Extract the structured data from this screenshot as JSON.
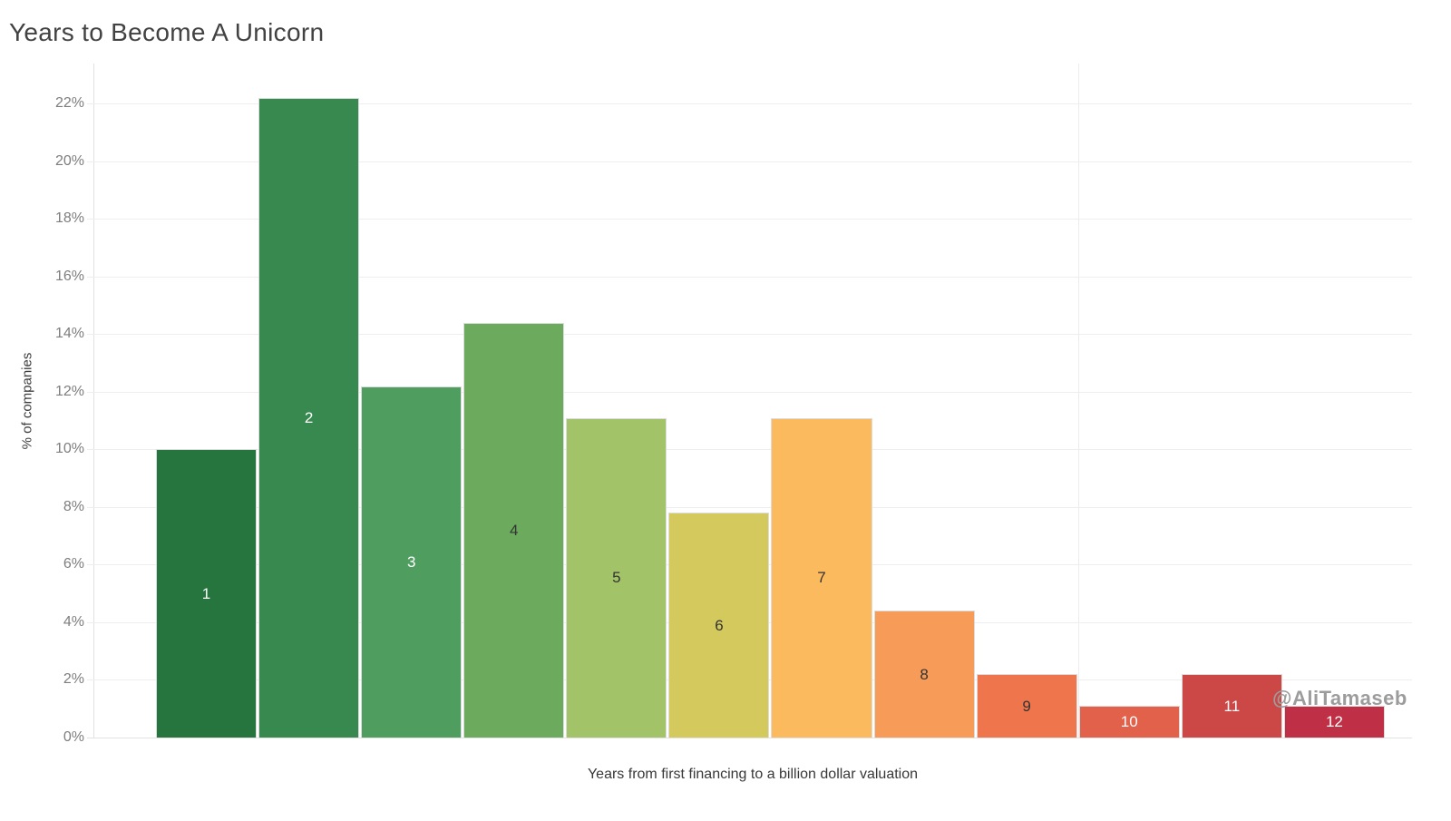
{
  "title": "Years to Become A Unicorn",
  "watermark": "@AliTamaseb",
  "chart_data": {
    "type": "bar",
    "title": "Years to Become A Unicorn",
    "xlabel": "Years from first financing to a billion dollar valuation",
    "ylabel": "% of companies",
    "categories": [
      "1",
      "2",
      "3",
      "4",
      "5",
      "6",
      "7",
      "8",
      "9",
      "10",
      "11",
      "12"
    ],
    "values": [
      10.0,
      22.2,
      12.2,
      14.4,
      11.1,
      7.8,
      11.1,
      4.4,
      2.2,
      1.1,
      2.2,
      1.1
    ],
    "value_unit": "%",
    "yticks": [
      0,
      2,
      4,
      6,
      8,
      10,
      12,
      14,
      16,
      18,
      20,
      22
    ],
    "ytick_suffix": "%",
    "ylim": [
      0,
      23.4
    ],
    "grid": "horizontal",
    "legend": "none",
    "bar_colors": [
      "#26753f",
      "#38894f",
      "#4f9e60",
      "#6cab5e",
      "#a3c368",
      "#d3c95c",
      "#fbba5d",
      "#f79b58",
      "#ef764c",
      "#e2614b",
      "#cc4846",
      "#bf3046"
    ],
    "bar_label_colors": [
      "#ffffff",
      "#ffffff",
      "#ffffff",
      "#333333",
      "#333333",
      "#333333",
      "#333333",
      "#333333",
      "#333333",
      "#ffffff",
      "#ffffff",
      "#ffffff"
    ]
  }
}
